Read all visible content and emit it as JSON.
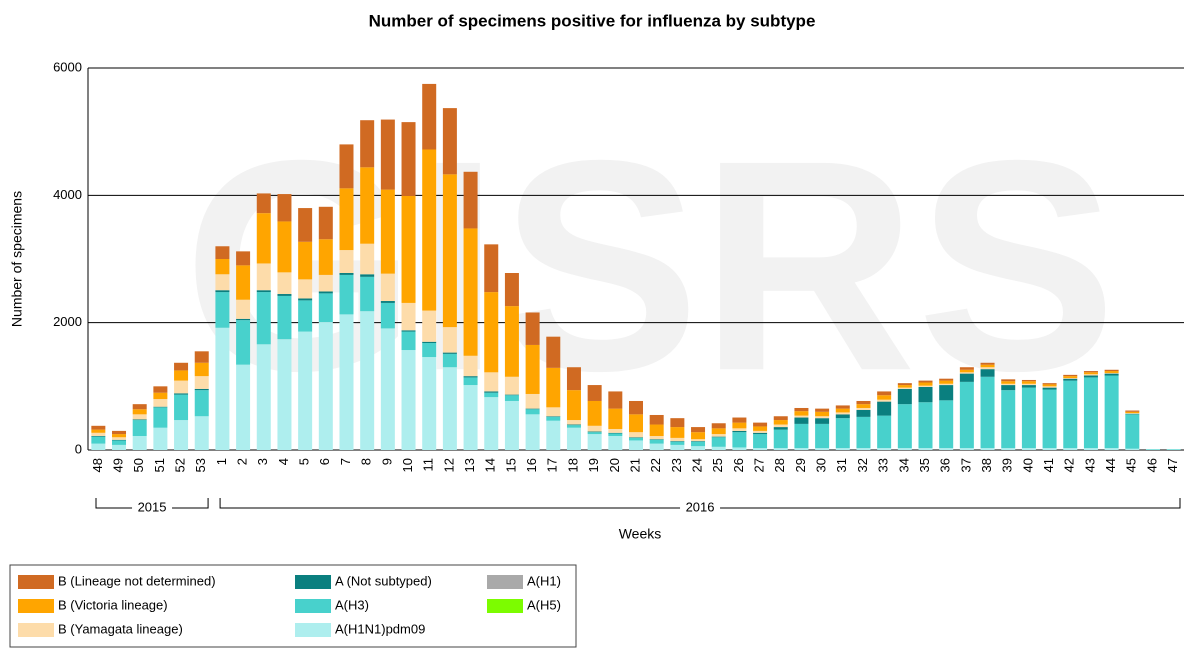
{
  "chart_data": {
    "type": "stacked_bar",
    "title": "Number of specimens positive for influenza by subtype",
    "y_label": "Number of specimens",
    "x_label": "Weeks",
    "watermark": "GISRS",
    "categories": [
      "48",
      "49",
      "50",
      "51",
      "52",
      "53",
      "1",
      "2",
      "3",
      "4",
      "5",
      "6",
      "7",
      "8",
      "9",
      "10",
      "11",
      "12",
      "13",
      "14",
      "15",
      "16",
      "17",
      "18",
      "19",
      "20",
      "21",
      "22",
      "23",
      "24",
      "25",
      "26",
      "27",
      "28",
      "29",
      "30",
      "31",
      "32",
      "33",
      "34",
      "35",
      "36",
      "37",
      "38",
      "39",
      "40",
      "41",
      "42",
      "43",
      "44",
      "45",
      "46",
      "47"
    ],
    "x_groups": [
      {
        "label": "2015",
        "count": 6
      },
      {
        "label": "2016",
        "count": 47
      }
    ],
    "ylim": [
      0,
      6000
    ],
    "yticks": [
      0,
      2000,
      4000,
      6000
    ],
    "grid": true,
    "series": [
      {
        "name": "A(H1N1)pdm09",
        "color": "#aeeeee",
        "values": [
          100,
          80,
          220,
          350,
          470,
          530,
          1920,
          1340,
          1660,
          1740,
          1860,
          2010,
          2130,
          2180,
          1910,
          1570,
          1460,
          1300,
          1020,
          830,
          770,
          560,
          460,
          350,
          250,
          220,
          150,
          100,
          80,
          60,
          50,
          40,
          30,
          30,
          30,
          30,
          30,
          30,
          30,
          30,
          30,
          30,
          30,
          30,
          30,
          30,
          30,
          30,
          30,
          30,
          20,
          0,
          0
        ]
      },
      {
        "name": "A(H3)",
        "color": "#48d1cc",
        "values": [
          110,
          70,
          250,
          320,
          400,
          410,
          560,
          700,
          820,
          680,
          490,
          450,
          620,
          540,
          400,
          290,
          220,
          210,
          120,
          70,
          90,
          80,
          60,
          40,
          30,
          40,
          40,
          60,
          50,
          70,
          150,
          240,
          220,
          290,
          380,
          380,
          470,
          490,
          510,
          690,
          720,
          750,
          1040,
          1120,
          910,
          950,
          920,
          1060,
          1110,
          1140,
          540,
          10,
          10
        ]
      },
      {
        "name": "A (Not subtyped)",
        "color": "#0a7f7f",
        "values": [
          10,
          10,
          10,
          10,
          20,
          20,
          30,
          20,
          30,
          30,
          30,
          30,
          30,
          40,
          30,
          20,
          20,
          20,
          20,
          20,
          10,
          10,
          10,
          10,
          10,
          10,
          10,
          10,
          10,
          10,
          10,
          20,
          20,
          40,
          100,
          90,
          60,
          110,
          220,
          240,
          240,
          240,
          130,
          120,
          80,
          40,
          30,
          30,
          30,
          30,
          10,
          0,
          0
        ]
      },
      {
        "name": "A(H1)",
        "color": "#a9a9a9",
        "values": [
          0,
          0,
          0,
          0,
          0,
          0,
          0,
          0,
          0,
          0,
          0,
          0,
          0,
          0,
          0,
          0,
          0,
          0,
          0,
          0,
          0,
          0,
          0,
          0,
          0,
          0,
          0,
          0,
          0,
          0,
          0,
          0,
          0,
          0,
          0,
          0,
          0,
          0,
          0,
          0,
          0,
          0,
          0,
          0,
          0,
          0,
          0,
          0,
          0,
          0,
          0,
          0,
          0
        ]
      },
      {
        "name": "A(H5)",
        "color": "#7cfc00",
        "values": [
          0,
          0,
          0,
          0,
          0,
          0,
          0,
          0,
          0,
          0,
          0,
          0,
          0,
          0,
          0,
          0,
          0,
          0,
          0,
          0,
          0,
          0,
          0,
          0,
          0,
          0,
          0,
          0,
          0,
          0,
          0,
          0,
          0,
          0,
          0,
          0,
          0,
          0,
          0,
          0,
          0,
          0,
          0,
          0,
          0,
          0,
          0,
          0,
          0,
          0,
          0,
          0,
          0
        ]
      },
      {
        "name": "B (Yamagata lineage)",
        "color": "#fddcaa",
        "values": [
          50,
          40,
          80,
          120,
          200,
          200,
          250,
          300,
          420,
          340,
          300,
          260,
          360,
          480,
          430,
          430,
          490,
          400,
          320,
          300,
          280,
          230,
          140,
          70,
          90,
          60,
          80,
          50,
          50,
          30,
          40,
          40,
          30,
          40,
          30,
          30,
          30,
          30,
          30,
          20,
          20,
          20,
          20,
          30,
          20,
          20,
          20,
          10,
          20,
          10,
          10,
          0,
          0
        ]
      },
      {
        "name": "B (Victoria lineage)",
        "color": "#ffa500",
        "values": [
          50,
          50,
          80,
          100,
          160,
          210,
          240,
          540,
          790,
          800,
          590,
          560,
          970,
          1200,
          1320,
          1680,
          2530,
          2400,
          2000,
          1260,
          1110,
          770,
          620,
          470,
          390,
          320,
          280,
          180,
          170,
          110,
          90,
          90,
          70,
          70,
          70,
          70,
          60,
          60,
          70,
          40,
          50,
          50,
          40,
          40,
          40,
          40,
          30,
          30,
          30,
          30,
          20,
          0,
          0
        ]
      },
      {
        "name": "B (Lineage not determined)",
        "color": "#d06a22",
        "values": [
          60,
          50,
          80,
          100,
          120,
          180,
          200,
          220,
          310,
          430,
          530,
          510,
          690,
          740,
          1100,
          1160,
          1030,
          1040,
          890,
          750,
          520,
          510,
          490,
          360,
          250,
          270,
          210,
          150,
          140,
          80,
          80,
          80,
          60,
          60,
          50,
          50,
          50,
          50,
          60,
          30,
          30,
          30,
          40,
          30,
          30,
          20,
          20,
          20,
          20,
          20,
          20,
          0,
          0
        ]
      }
    ]
  }
}
